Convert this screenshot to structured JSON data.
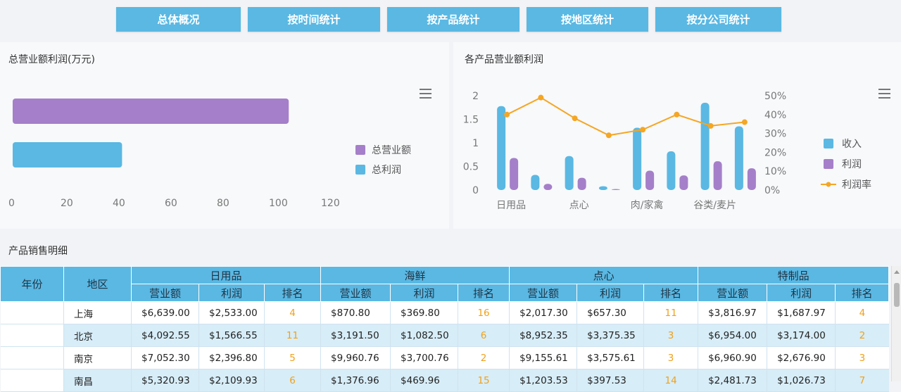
{
  "tabs": [
    "总体概况",
    "按时间统计",
    "按产品统计",
    "按地区统计",
    "按分公司统计"
  ],
  "colors": {
    "purple": "#a57fc9",
    "blue": "#5ab8e3",
    "orange": "#f5a623",
    "rank": "#f0a11a"
  },
  "left_chart": {
    "title": "总营业额利润(万元)",
    "menu_icon": "hamburger-icon",
    "chart_data": {
      "type": "bar",
      "orientation": "horizontal",
      "categories": [
        ""
      ],
      "series": [
        {
          "name": "总营业额",
          "values": [
            106
          ],
          "color": "#a57fc9"
        },
        {
          "name": "总利润",
          "values": [
            42
          ],
          "color": "#5ab8e3"
        }
      ],
      "xlim": [
        0,
        120
      ],
      "xticks": [
        "0",
        "20",
        "40",
        "60",
        "80",
        "100",
        "120"
      ],
      "legend": "right",
      "grid": false
    }
  },
  "right_chart": {
    "title": "各产品营业额利润",
    "menu_icon": "hamburger-icon",
    "chart_data": {
      "type": "bar",
      "x_tick_labels": [
        "日用品",
        "点心",
        "肉/家禽",
        "谷类/麦片"
      ],
      "ylim": [
        0,
        2
      ],
      "yticks": [
        "0",
        "0.5",
        "1",
        "1.5",
        "2"
      ],
      "y2lim": [
        0,
        0.5
      ],
      "y2ticks": [
        "0%",
        "10%",
        "20%",
        "30%",
        "40%",
        "50%"
      ],
      "series": [
        {
          "name": "收入",
          "type": "bar",
          "color": "#5ab8e3",
          "values": [
            1.78,
            0.32,
            0.72,
            0.08,
            1.32,
            0.82,
            1.85,
            1.35
          ]
        },
        {
          "name": "利润",
          "type": "bar",
          "color": "#a57fc9",
          "values": [
            0.68,
            0.13,
            0.26,
            0.02,
            0.41,
            0.31,
            0.61,
            0.46
          ]
        },
        {
          "name": "利润率",
          "type": "line",
          "color": "#f5a623",
          "values": [
            0.4,
            0.49,
            0.38,
            0.29,
            0.32,
            0.4,
            0.34,
            0.36
          ]
        }
      ],
      "legend": "right"
    }
  },
  "table": {
    "title": "产品销售明细",
    "year_header": "年份",
    "region_header": "地区",
    "groups": [
      "日用品",
      "海鲜",
      "点心",
      "特制品"
    ],
    "sub_headers": [
      "营业额",
      "利润",
      "排名"
    ],
    "rows": [
      {
        "region": "上海",
        "cells": [
          "$6,639.00",
          "$2,533.00",
          "4",
          "$870.80",
          "$369.80",
          "16",
          "$2,017.30",
          "$657.30",
          "11",
          "$3,816.97",
          "$1,687.97",
          "4"
        ]
      },
      {
        "region": "北京",
        "cells": [
          "$4,092.55",
          "$1,566.55",
          "11",
          "$3,191.50",
          "$1,082.50",
          "6",
          "$8,952.35",
          "$3,375.35",
          "3",
          "$6,954.00",
          "$3,174.00",
          "2"
        ]
      },
      {
        "region": "南京",
        "cells": [
          "$7,052.30",
          "$2,396.80",
          "5",
          "$9,960.76",
          "$3,700.76",
          "2",
          "$9,155.61",
          "$3,575.61",
          "3",
          "$6,960.90",
          "$2,676.90",
          "3"
        ]
      },
      {
        "region": "南昌",
        "cells": [
          "$5,320.93",
          "$2,109.93",
          "6",
          "$1,376.96",
          "$469.96",
          "15",
          "$1,203.53",
          "$397.53",
          "14",
          "$2,481.73",
          "$1,026.73",
          "7"
        ]
      }
    ]
  }
}
